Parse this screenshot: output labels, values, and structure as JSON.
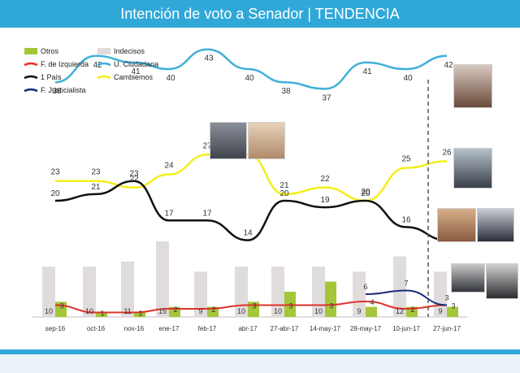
{
  "header": {
    "title": "Intención de voto a Senador | TENDENCIA"
  },
  "colors": {
    "header": "#2fa8d8",
    "otros": "#a4c639",
    "indecisos": "#e1dcdc",
    "izquierda": "#e0312b",
    "unidad_ciudadana": "#3fb0d9",
    "un_pais": "#111111",
    "cambiemos": "#f5ee1a",
    "justicialista": "#1a2a7a",
    "divider": "#555555"
  },
  "icons": {
    "candidate_photos": [
      "photo-icon"
    ]
  },
  "chart_data": {
    "type": "line",
    "title": "Intención de voto a Senador | TENDENCIA",
    "xlabel": "",
    "ylabel": "",
    "categories": [
      "sep-16",
      "oct-16",
      "nov-16",
      "ene-17",
      "feb-17",
      "abr-17",
      "27-abr-17",
      "14-may-17",
      "28-may-17",
      "10-jun-17",
      "27-jun-17"
    ],
    "legend": [
      {
        "name": "Otros",
        "color": "#a4c639",
        "kind": "bar"
      },
      {
        "name": "Indecisos",
        "color": "#e1dcdc",
        "kind": "bar"
      },
      {
        "name": "F. de Izquierda",
        "color": "#e0312b",
        "kind": "line"
      },
      {
        "name": "U. Ciudadana",
        "color": "#3fb0d9",
        "kind": "line"
      },
      {
        "name": "1 País",
        "color": "#111111",
        "kind": "line"
      },
      {
        "name": "Cambiemos",
        "color": "#f5ee1a",
        "kind": "line"
      },
      {
        "name": "F. Justicialista",
        "color": "#1a2a7a",
        "kind": "line"
      }
    ],
    "series": [
      {
        "name": "U. Ciudadana",
        "type": "line",
        "values": [
          38,
          42,
          41,
          40,
          43,
          40,
          38,
          37,
          41,
          40,
          42
        ]
      },
      {
        "name": "Cambiemos",
        "type": "line",
        "values": [
          23,
          23,
          22,
          24,
          27,
          27,
          21,
          22,
          20,
          25,
          26
        ]
      },
      {
        "name": "1 País",
        "type": "line",
        "values": [
          20,
          21,
          23,
          17,
          17,
          14,
          20,
          19,
          20,
          16,
          14
        ]
      },
      {
        "name": "F. de Izquierda",
        "type": "line",
        "values": [
          3,
          1,
          1,
          2,
          2,
          3,
          3,
          3,
          4,
          2,
          3
        ]
      },
      {
        "name": "F. Justicialista",
        "type": "line",
        "values": [
          null,
          null,
          null,
          null,
          null,
          null,
          null,
          null,
          6,
          7,
          3
        ]
      },
      {
        "name": "Otros",
        "type": "bar",
        "values": [
          3,
          1,
          1,
          2,
          2,
          3,
          5,
          7,
          2,
          2,
          2
        ]
      },
      {
        "name": "Indecisos",
        "type": "bar",
        "values": [
          10,
          10,
          11,
          15,
          9,
          10,
          10,
          10,
          9,
          12,
          9
        ]
      }
    ],
    "label_text": {
      "U. Ciudadana": [
        "38",
        "42",
        "41",
        "40",
        "43",
        "40",
        "38",
        "37",
        "41",
        "40",
        "42"
      ],
      "Cambiemos": [
        "23",
        "23",
        "22",
        "24",
        "27",
        "",
        "21",
        "22",
        "20",
        "25",
        "26"
      ],
      "1 País": [
        "20",
        "21",
        "23",
        "17",
        "17",
        "14",
        "20",
        "19",
        "20",
        "16",
        "14"
      ],
      "F. de Izquierda": [
        "3",
        "1",
        "1",
        "2",
        "2",
        "3",
        "3",
        "3",
        "4",
        "2",
        "3"
      ],
      "F. Justicialista": [
        "",
        "",
        "",
        "",
        "",
        "",
        "",
        "",
        "6",
        "7",
        "3"
      ],
      "Indecisos": [
        "10",
        "10",
        "11",
        "15",
        "9",
        "10",
        "10",
        "10",
        "9",
        "12",
        "9"
      ]
    },
    "divider_after": "10-jun-17"
  }
}
